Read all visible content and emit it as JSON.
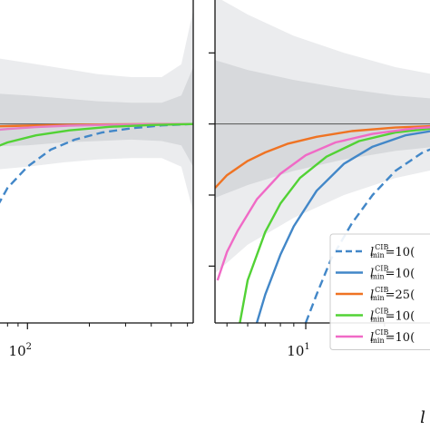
{
  "chart_data": [
    {
      "panel": "left",
      "type": "line",
      "xscale": "log",
      "xlabel": "",
      "ylabel": "",
      "ticks": [
        {
          "base": "10",
          "exp": "2",
          "value": 100
        }
      ],
      "xlim": [
        60,
        640
      ],
      "ylim": [
        -1.4,
        1.0
      ],
      "grid": false,
      "bands": [
        {
          "name": "outer",
          "color": "#ebecee",
          "lower": [
            -0.33,
            -0.3,
            -0.27,
            -0.25,
            -0.24,
            -0.24,
            -0.3,
            -0.62
          ],
          "upper": [
            0.48,
            0.43,
            0.39,
            0.35,
            0.33,
            0.33,
            0.42,
            0.8
          ]
        },
        {
          "name": "inner",
          "color": "#d7d9dc",
          "lower": [
            -0.16,
            -0.15,
            -0.13,
            -0.12,
            -0.11,
            -0.12,
            -0.15,
            -0.3
          ],
          "upper": [
            0.22,
            0.2,
            0.18,
            0.16,
            0.15,
            0.15,
            0.2,
            0.4
          ]
        }
      ],
      "band_x": [
        60,
        100,
        150,
        220,
        320,
        450,
        560,
        640
      ],
      "series": [
        {
          "color": "#4287c8",
          "dashed": true,
          "x": [
            60,
            70,
            80,
            100,
            130,
            170,
            230,
            320,
            450,
            640
          ],
          "y": [
            -0.82,
            -0.6,
            -0.45,
            -0.3,
            -0.18,
            -0.11,
            -0.06,
            -0.03,
            -0.01,
            0.0
          ]
        },
        {
          "color": "#ef7323",
          "dashed": false,
          "x": [
            60,
            80,
            110,
            160,
            250,
            400,
            640
          ],
          "y": [
            -0.02,
            -0.015,
            -0.01,
            -0.006,
            -0.003,
            -0.001,
            0.0
          ]
        },
        {
          "color": "#e57ec6",
          "dashed": false,
          "x": [
            60,
            80,
            110,
            160,
            250,
            400,
            640
          ],
          "y": [
            -0.05,
            -0.035,
            -0.022,
            -0.012,
            -0.006,
            -0.002,
            0.0
          ]
        },
        {
          "color": "#52d235",
          "dashed": false,
          "x": [
            60,
            80,
            110,
            160,
            250,
            400,
            640
          ],
          "y": [
            -0.2,
            -0.13,
            -0.08,
            -0.045,
            -0.02,
            -0.007,
            0.0
          ]
        }
      ]
    },
    {
      "panel": "right",
      "type": "line",
      "xscale": "log",
      "xlabel": "l",
      "ylabel": "",
      "ticks": [
        {
          "base": "10",
          "exp": "1",
          "value": 10
        }
      ],
      "xlim": [
        4.5,
        35
      ],
      "ylim": [
        -1.4,
        1.0
      ],
      "grid": false,
      "bands": [
        {
          "name": "outer",
          "color": "#ebecee",
          "lower": [
            -1.05,
            -0.85,
            -0.66,
            -0.5,
            -0.38,
            -0.3
          ],
          "upper": [
            0.9,
            0.77,
            0.62,
            0.5,
            0.4,
            0.33
          ]
        },
        {
          "name": "inner",
          "color": "#d7d9dc",
          "lower": [
            -0.52,
            -0.43,
            -0.33,
            -0.25,
            -0.19,
            -0.15
          ],
          "upper": [
            0.45,
            0.38,
            0.31,
            0.25,
            0.2,
            0.17
          ]
        }
      ],
      "band_x": [
        4.5,
        6,
        9,
        14,
        22,
        35
      ],
      "series": [
        {
          "color": "#4287c8",
          "dashed": true,
          "x": [
            10,
            11,
            12.5,
            15,
            18,
            22,
            28,
            35
          ],
          "y": [
            -1.4,
            -1.2,
            -0.95,
            -0.7,
            -0.5,
            -0.33,
            -0.2,
            -0.13
          ]
        },
        {
          "color": "#4287c8",
          "dashed": false,
          "x": [
            6.5,
            7,
            8,
            9,
            11,
            14,
            18,
            24,
            35
          ],
          "y": [
            -1.4,
            -1.2,
            -0.92,
            -0.72,
            -0.47,
            -0.28,
            -0.16,
            -0.08,
            -0.03
          ]
        },
        {
          "color": "#ef7323",
          "dashed": false,
          "x": [
            4.5,
            5,
            6,
            7,
            8.5,
            11,
            15,
            22,
            35
          ],
          "y": [
            -0.45,
            -0.36,
            -0.26,
            -0.2,
            -0.14,
            -0.09,
            -0.05,
            -0.025,
            -0.01
          ]
        },
        {
          "color": "#52d235",
          "dashed": false,
          "x": [
            5.6,
            6,
            7,
            8,
            9.5,
            12,
            16,
            22,
            35
          ],
          "y": [
            -1.4,
            -1.1,
            -0.76,
            -0.56,
            -0.38,
            -0.23,
            -0.12,
            -0.06,
            -0.02
          ]
        },
        {
          "color": "#f06ac6",
          "dashed": false,
          "x": [
            4.6,
            5,
            5.5,
            6.5,
            8,
            10,
            13,
            18,
            26,
            35
          ],
          "y": [
            -1.1,
            -0.9,
            -0.75,
            -0.53,
            -0.35,
            -0.22,
            -0.13,
            -0.07,
            -0.03,
            -0.015
          ]
        }
      ],
      "legend": {
        "placement": "bottom-right",
        "entries": [
          {
            "color": "#4287c8",
            "dashed": true,
            "sym": "l",
            "sup": "CIB",
            "sub": "min",
            "text": "=10("
          },
          {
            "color": "#4287c8",
            "dashed": false,
            "sym": "l",
            "sup": "CIB",
            "sub": "min",
            "text": "=10("
          },
          {
            "color": "#ef7323",
            "dashed": false,
            "sym": "l",
            "sup": "CIB",
            "sub": "min",
            "text": "=25("
          },
          {
            "color": "#52d235",
            "dashed": false,
            "sym": "l",
            "sup": "CIB",
            "sub": "min",
            "text": "=10("
          },
          {
            "color": "#f06ac6",
            "dashed": false,
            "sym": "l",
            "sup": "CIB",
            "sub": "min",
            "text": "=10("
          }
        ]
      }
    }
  ]
}
